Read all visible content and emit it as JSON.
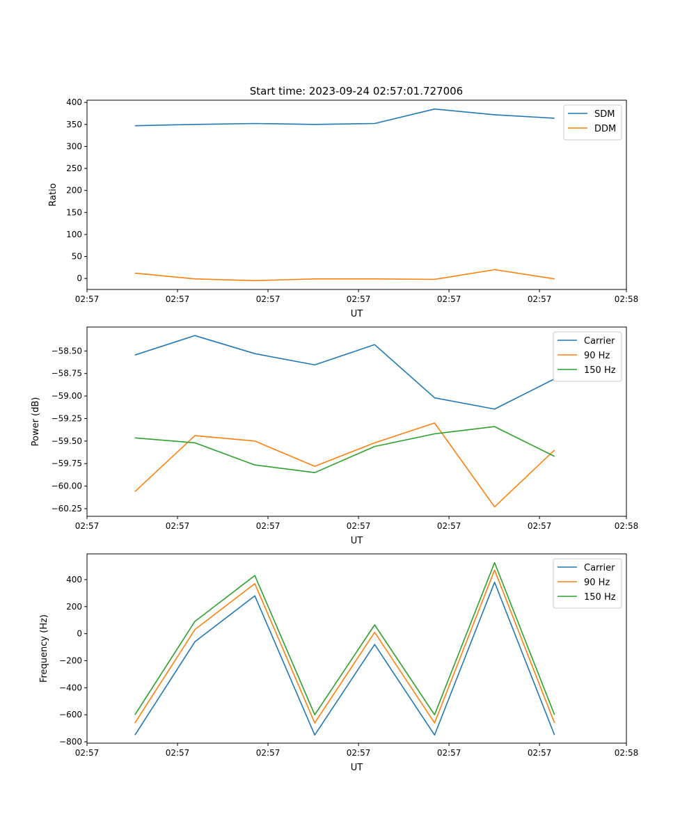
{
  "figure": {
    "title": "Start time: 2023-09-24 02:57:01.727006"
  },
  "colors": {
    "blue": "#1f77b4",
    "orange": "#ff7f0e",
    "green": "#2ca02c"
  },
  "chart_data": [
    {
      "type": "line",
      "name": "ratio",
      "title": "Start time: 2023-09-24 02:57:01.727006",
      "xlabel": "UT",
      "ylabel": "Ratio",
      "x": [
        1,
        2,
        3,
        4,
        5,
        6,
        7,
        8
      ],
      "xlim": [
        0.2,
        9.2
      ],
      "x_ticks": [
        0.2,
        1.71,
        3.22,
        4.73,
        6.24,
        7.75,
        9.2
      ],
      "x_tick_labels": [
        "02:57",
        "02:57",
        "02:57",
        "02:57",
        "02:57",
        "02:57",
        "02:58"
      ],
      "ylim": [
        -25,
        405
      ],
      "y_ticks": [
        0,
        50,
        100,
        150,
        200,
        250,
        300,
        350,
        400
      ],
      "y_tick_labels": [
        "0",
        "50",
        "100",
        "150",
        "200",
        "250",
        "300",
        "350",
        "400"
      ],
      "legend": "top-right",
      "series": [
        {
          "name": "SDM",
          "color": "#1f77b4",
          "values": [
            347,
            350,
            352,
            350,
            352,
            385,
            372,
            364
          ]
        },
        {
          "name": "DDM",
          "color": "#ff7f0e",
          "values": [
            12,
            -1,
            -5,
            -1,
            -1,
            -2,
            20,
            -1
          ]
        }
      ]
    },
    {
      "type": "line",
      "name": "power",
      "title": "",
      "xlabel": "UT",
      "ylabel": "Power (dB)",
      "x": [
        1,
        2,
        3,
        4,
        5,
        6,
        7,
        8
      ],
      "xlim": [
        0.2,
        9.2
      ],
      "x_ticks": [
        0.2,
        1.71,
        3.22,
        4.73,
        6.24,
        7.75,
        9.2
      ],
      "x_tick_labels": [
        "02:57",
        "02:57",
        "02:57",
        "02:57",
        "02:57",
        "02:57",
        "02:58"
      ],
      "ylim": [
        -60.335,
        -58.235
      ],
      "y_ticks": [
        -58.5,
        -58.75,
        -59.0,
        -59.25,
        -59.5,
        -59.75,
        -60.0,
        -60.25
      ],
      "y_tick_labels": [
        "−58.50",
        "−58.75",
        "−59.00",
        "−59.25",
        "−59.50",
        "−59.75",
        "−60.00",
        "−60.25"
      ],
      "legend": "top-right",
      "series": [
        {
          "name": "Carrier",
          "color": "#1f77b4",
          "values": [
            -58.545,
            -58.33,
            -58.53,
            -58.655,
            -58.43,
            -59.02,
            -59.145,
            -58.81
          ]
        },
        {
          "name": "90 Hz",
          "color": "#ff7f0e",
          "values": [
            -60.06,
            -59.44,
            -59.5,
            -59.78,
            -59.52,
            -59.3,
            -60.23,
            -59.6
          ]
        },
        {
          "name": "150 Hz",
          "color": "#2ca02c",
          "values": [
            -59.465,
            -59.52,
            -59.765,
            -59.85,
            -59.56,
            -59.42,
            -59.34,
            -59.67
          ]
        }
      ]
    },
    {
      "type": "line",
      "name": "frequency",
      "title": "",
      "xlabel": "UT",
      "ylabel": "Frequency (Hz)",
      "x": [
        1,
        2,
        3,
        4,
        5,
        6,
        7,
        8
      ],
      "xlim": [
        0.2,
        9.2
      ],
      "x_ticks": [
        0.2,
        1.71,
        3.22,
        4.73,
        6.24,
        7.75,
        9.2
      ],
      "x_tick_labels": [
        "02:57",
        "02:57",
        "02:57",
        "02:57",
        "02:57",
        "02:57",
        "02:58"
      ],
      "ylim": [
        -810,
        590
      ],
      "y_ticks": [
        400,
        200,
        0,
        -200,
        -400,
        -600,
        -800
      ],
      "y_tick_labels": [
        "400",
        "200",
        "0",
        "−200",
        "−400",
        "−600",
        "−800"
      ],
      "legend": "top-right",
      "series": [
        {
          "name": "Carrier",
          "color": "#1f77b4",
          "values": [
            -750,
            -60,
            280,
            -750,
            -80,
            -750,
            380,
            -750
          ]
        },
        {
          "name": "90 Hz",
          "color": "#ff7f0e",
          "values": [
            -660,
            30,
            370,
            -660,
            10,
            -660,
            470,
            -660
          ]
        },
        {
          "name": "150 Hz",
          "color": "#2ca02c",
          "values": [
            -600,
            90,
            430,
            -600,
            65,
            -600,
            525,
            -600
          ]
        }
      ]
    }
  ]
}
